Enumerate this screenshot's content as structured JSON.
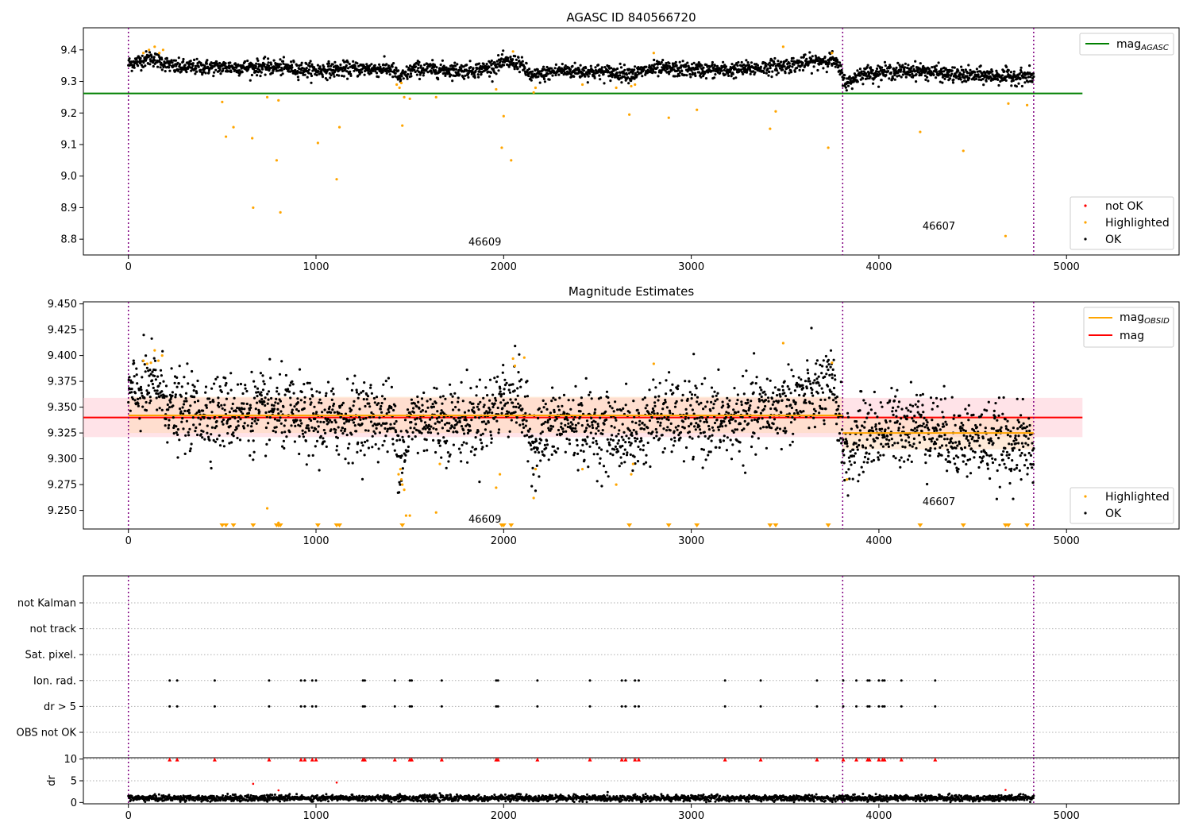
{
  "colors": {
    "ok": "#000000",
    "highlighted": "#FFA500",
    "not_ok": "#FF0000",
    "mag_agasc_line": "#008000",
    "mag_line": "#FF0000",
    "mag_obsid_line": "#FFA500",
    "obs_boundary": "#800080",
    "band_global": "#FFC0CB",
    "band_obsid": "#FFDAB9"
  },
  "chart_data": [
    {
      "type": "scatter",
      "title": "AGASC ID 840566720",
      "xlim": [
        -240,
        5600
      ],
      "ylim": [
        8.75,
        9.47
      ],
      "x_ticks": [
        0,
        1000,
        2000,
        3000,
        4000,
        5000
      ],
      "y_ticks": [
        8.8,
        8.9,
        9.0,
        9.1,
        9.2,
        9.3,
        9.4
      ],
      "obs_boundaries": [
        0,
        3807,
        4825
      ],
      "obs_labels": [
        {
          "x": 1900,
          "y": 8.78,
          "text": "46609"
        },
        {
          "x": 4320,
          "y": 8.83,
          "text": "46607"
        }
      ],
      "mag_agasc": {
        "label": "mag",
        "subscript": "AGASC",
        "value": 9.262,
        "x_range": [
          -240,
          5085
        ]
      },
      "series": [
        {
          "name": "not OK",
          "color": "#FF0000",
          "points": []
        },
        {
          "name": "Highlighted",
          "color": "#FFA500",
          "points": [
            [
              80,
              9.39
            ],
            [
              110,
              9.4
            ],
            [
              140,
              9.41
            ],
            [
              165,
              9.39
            ],
            [
              185,
              9.4
            ],
            [
              500,
              9.235
            ],
            [
              520,
              9.125
            ],
            [
              560,
              9.155
            ],
            [
              660,
              9.12
            ],
            [
              665,
              8.9
            ],
            [
              740,
              9.25
            ],
            [
              790,
              9.05
            ],
            [
              800,
              9.24
            ],
            [
              810,
              8.885
            ],
            [
              1010,
              9.105
            ],
            [
              1110,
              8.99
            ],
            [
              1125,
              9.155
            ],
            [
              1430,
              9.29
            ],
            [
              1445,
              9.28
            ],
            [
              1455,
              9.295
            ],
            [
              1460,
              9.16
            ],
            [
              1470,
              9.25
            ],
            [
              1500,
              9.245
            ],
            [
              1640,
              9.25
            ],
            [
              1960,
              9.275
            ],
            [
              1990,
              9.09
            ],
            [
              2000,
              9.19
            ],
            [
              2040,
              9.05
            ],
            [
              2050,
              9.395
            ],
            [
              2160,
              9.265
            ],
            [
              2170,
              9.28
            ],
            [
              2420,
              9.29
            ],
            [
              2600,
              9.28
            ],
            [
              2670,
              9.195
            ],
            [
              2680,
              9.285
            ],
            [
              2700,
              9.29
            ],
            [
              2800,
              9.39
            ],
            [
              2880,
              9.185
            ],
            [
              3030,
              9.21
            ],
            [
              3420,
              9.15
            ],
            [
              3450,
              9.205
            ],
            [
              3490,
              9.41
            ],
            [
              3730,
              9.09
            ],
            [
              3750,
              9.39
            ],
            [
              4220,
              9.14
            ],
            [
              4450,
              9.08
            ],
            [
              4675,
              8.81
            ],
            [
              4690,
              9.23
            ],
            [
              4790,
              9.225
            ]
          ]
        },
        {
          "name": "OK",
          "color": "#000000",
          "baseline": [
            [
              0,
              9.355
            ],
            [
              120,
              9.375
            ],
            [
              250,
              9.345
            ],
            [
              500,
              9.345
            ],
            [
              800,
              9.345
            ],
            [
              1000,
              9.335
            ],
            [
              1200,
              9.34
            ],
            [
              1400,
              9.34
            ],
            [
              1450,
              9.31
            ],
            [
              1520,
              9.34
            ],
            [
              1800,
              9.335
            ],
            [
              1900,
              9.34
            ],
            [
              2000,
              9.36
            ],
            [
              2080,
              9.36
            ],
            [
              2150,
              9.315
            ],
            [
              2300,
              9.335
            ],
            [
              2700,
              9.325
            ],
            [
              2800,
              9.34
            ],
            [
              3200,
              9.335
            ],
            [
              3500,
              9.35
            ],
            [
              3750,
              9.37
            ],
            [
              3790,
              9.34
            ],
            [
              3830,
              9.29
            ],
            [
              3900,
              9.325
            ],
            [
              4200,
              9.335
            ],
            [
              4400,
              9.32
            ],
            [
              4825,
              9.315
            ]
          ],
          "n_points": 2600,
          "x_range": [
            0,
            4825
          ],
          "spread": 0.012
        }
      ],
      "legend_items": [
        {
          "kind": "line",
          "label": "mag",
          "subscript": "AGASC",
          "color": "#008000",
          "placement": "top-right"
        },
        {
          "kind": "marker",
          "label": "not OK",
          "color": "#FF0000",
          "placement": "bottom-right"
        },
        {
          "kind": "marker",
          "label": "Highlighted",
          "color": "#FFA500",
          "placement": "bottom-right"
        },
        {
          "kind": "marker",
          "label": "OK",
          "color": "#000000",
          "placement": "bottom-right"
        }
      ]
    },
    {
      "type": "scatter",
      "title": "Magnitude Estimates",
      "xlim": [
        -240,
        5600
      ],
      "ylim": [
        9.232,
        9.452
      ],
      "x_ticks": [
        0,
        1000,
        2000,
        3000,
        4000,
        5000
      ],
      "y_ticks": [
        9.25,
        9.275,
        9.3,
        9.325,
        9.35,
        9.375,
        9.4,
        9.425,
        9.45
      ],
      "y_tick_labels": [
        "9.250",
        "9.275",
        "9.300",
        "9.325",
        "9.350",
        "9.375",
        "9.400",
        "9.425",
        "9.450"
      ],
      "obs_boundaries": [
        0,
        3807,
        4825
      ],
      "obs_labels": [
        {
          "x": 1900,
          "y": 9.238,
          "text": "46609"
        },
        {
          "x": 4320,
          "y": 9.255,
          "text": "46607"
        }
      ],
      "mag": {
        "label": "mag",
        "value": 9.34,
        "band": [
          9.321,
          9.359
        ],
        "x_range": [
          -240,
          5085
        ]
      },
      "mag_obsid": {
        "label": "mag",
        "subscript": "OBSID",
        "segments": [
          {
            "x_range": [
              0,
              3807
            ],
            "value": 9.342,
            "band": [
              9.325,
              9.36
            ]
          },
          {
            "x_range": [
              3807,
              4825
            ],
            "value": 9.325,
            "band": [
              9.309,
              9.341
            ]
          }
        ]
      },
      "series": [
        {
          "name": "Highlighted",
          "color": "#FFA500",
          "points": [
            [
              80,
              9.395
            ],
            [
              100,
              9.392
            ],
            [
              120,
              9.393
            ],
            [
              140,
              9.405
            ],
            [
              160,
              9.395
            ],
            [
              180,
              9.4
            ],
            [
              740,
              9.252
            ],
            [
              800,
              9.238
            ],
            [
              1440,
              9.285
            ],
            [
              1450,
              9.29
            ],
            [
              1455,
              9.28
            ],
            [
              1460,
              9.275
            ],
            [
              1470,
              9.27
            ],
            [
              1480,
              9.245
            ],
            [
              1500,
              9.245
            ],
            [
              1640,
              9.248
            ],
            [
              1660,
              9.295
            ],
            [
              1960,
              9.272
            ],
            [
              1980,
              9.285
            ],
            [
              2050,
              9.397
            ],
            [
              2060,
              9.39
            ],
            [
              2110,
              9.398
            ],
            [
              2160,
              9.262
            ],
            [
              2170,
              9.29
            ],
            [
              2420,
              9.29
            ],
            [
              2600,
              9.275
            ],
            [
              2680,
              9.285
            ],
            [
              2690,
              9.295
            ],
            [
              2800,
              9.392
            ],
            [
              3490,
              9.412
            ],
            [
              3750,
              9.393
            ],
            [
              3830,
              9.28
            ]
          ],
          "clipped_below_x": [
            500,
            520,
            560,
            665,
            790,
            800,
            810,
            1010,
            1110,
            1125,
            1460,
            1990,
            2000,
            2040,
            2670,
            2880,
            3030,
            3420,
            3450,
            3730,
            4220,
            4450,
            4675,
            4690,
            4790
          ]
        },
        {
          "name": "OK",
          "color": "#000000",
          "baseline": [
            [
              0,
              9.36
            ],
            [
              150,
              9.372
            ],
            [
              250,
              9.345
            ],
            [
              500,
              9.345
            ],
            [
              800,
              9.345
            ],
            [
              1000,
              9.335
            ],
            [
              1200,
              9.34
            ],
            [
              1400,
              9.34
            ],
            [
              1450,
              9.305
            ],
            [
              1520,
              9.34
            ],
            [
              1800,
              9.335
            ],
            [
              1900,
              9.34
            ],
            [
              2000,
              9.36
            ],
            [
              2080,
              9.36
            ],
            [
              2150,
              9.315
            ],
            [
              2300,
              9.335
            ],
            [
              2700,
              9.322
            ],
            [
              2800,
              9.34
            ],
            [
              3200,
              9.335
            ],
            [
              3500,
              9.352
            ],
            [
              3750,
              9.37
            ],
            [
              3790,
              9.34
            ],
            [
              3830,
              9.3
            ],
            [
              3900,
              9.322
            ],
            [
              4200,
              9.335
            ],
            [
              4400,
              9.32
            ],
            [
              4825,
              9.312
            ]
          ],
          "n_points": 2600,
          "x_range": [
            0,
            4825
          ],
          "spread": 0.018
        }
      ],
      "legend_items": [
        {
          "kind": "line",
          "label": "mag",
          "subscript": "OBSID",
          "color": "#FFA500",
          "placement": "top-right"
        },
        {
          "kind": "line",
          "label": "mag",
          "color": "#FF0000",
          "placement": "top-right"
        },
        {
          "kind": "marker",
          "label": "Highlighted",
          "color": "#FFA500",
          "placement": "bottom-right"
        },
        {
          "kind": "marker",
          "label": "OK",
          "color": "#000000",
          "placement": "bottom-right"
        }
      ]
    },
    {
      "type": "scatter",
      "xlim": [
        -240,
        5600
      ],
      "categories": [
        "OBS not OK",
        "dr > 5",
        "Ion. rad.",
        "Sat. pixel.",
        "not track",
        "not Kalman"
      ],
      "obs_boundaries": [
        0,
        3807,
        4825
      ],
      "flag_events": {
        "Ion. rad.": [
          220,
          260,
          460,
          750,
          920,
          940,
          980,
          1000,
          1250,
          1260,
          1420,
          1500,
          1510,
          1670,
          1960,
          1970,
          2180,
          2460,
          2630,
          2650,
          2700,
          2720,
          3180,
          3370,
          3670,
          3810,
          3880,
          3940,
          3950,
          4000,
          4020,
          4030,
          4120,
          4300
        ],
        "dr > 5": [
          220,
          260,
          460,
          750,
          920,
          940,
          980,
          1000,
          1250,
          1260,
          1420,
          1500,
          1510,
          1670,
          1960,
          1970,
          2180,
          2460,
          2630,
          2650,
          2700,
          2720,
          3180,
          3370,
          3670,
          3810,
          3880,
          3940,
          3950,
          4000,
          4020,
          4030,
          4120,
          4300
        ]
      }
    },
    {
      "type": "scatter",
      "xlim": [
        -240,
        5600
      ],
      "ylim": [
        -0.3,
        10.3
      ],
      "x_ticks": [
        0,
        1000,
        2000,
        3000,
        4000,
        5000
      ],
      "y_ticks": [
        0,
        5,
        10
      ],
      "ylabel": "dr",
      "obs_boundaries": [
        0,
        3807,
        4825
      ],
      "dr_baseline": {
        "mean": 1.0,
        "spread": 0.5,
        "n_points": 2600,
        "x_range": [
          0,
          4825
        ]
      },
      "dr_outliers": [
        [
          665,
          4.3
        ],
        [
          800,
          2.8
        ],
        [
          1110,
          4.6
        ],
        [
          4675,
          2.9
        ]
      ],
      "dr_clipped_x": [
        220,
        260,
        460,
        750,
        920,
        940,
        980,
        1000,
        1250,
        1260,
        1420,
        1500,
        1510,
        1670,
        1960,
        1970,
        2180,
        2460,
        2630,
        2650,
        2700,
        2720,
        3180,
        3370,
        3670,
        3810,
        3880,
        3940,
        3950,
        4000,
        4020,
        4030,
        4120,
        4300
      ]
    }
  ]
}
